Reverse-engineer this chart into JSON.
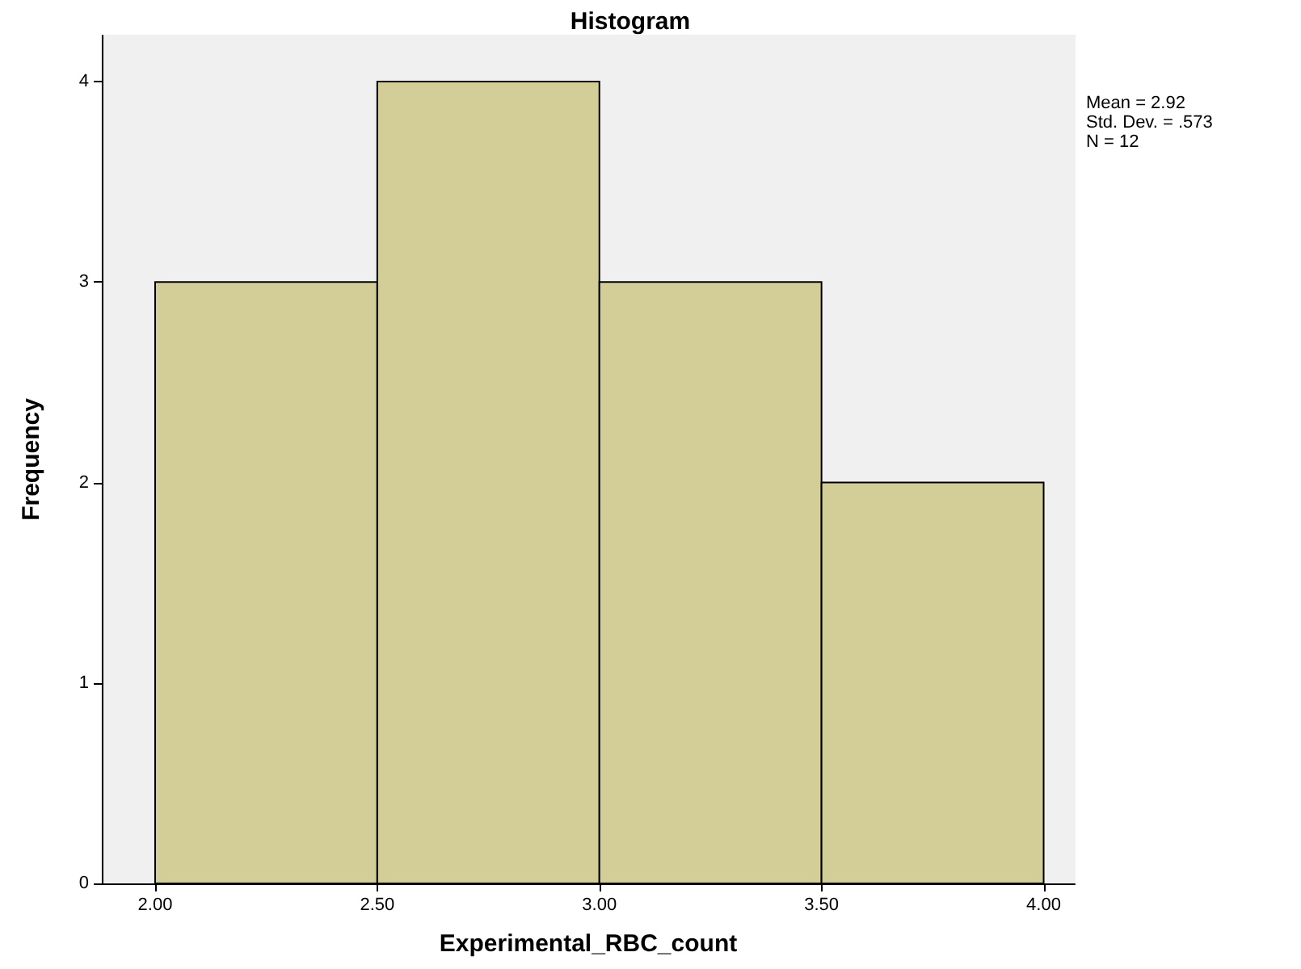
{
  "chart_data": {
    "type": "histogram",
    "title": "Histogram",
    "xlabel": "Experimental_RBC_count",
    "ylabel": "Frequency",
    "bins": [
      2.0,
      2.5,
      3.0,
      3.5,
      4.0
    ],
    "values": [
      3,
      4,
      3,
      2
    ],
    "color": "#d3ce97",
    "xlim": [
      1.88,
      4.07
    ],
    "xticks": [
      {
        "value": 2.0,
        "label": "2.00"
      },
      {
        "value": 2.5,
        "label": "2.50"
      },
      {
        "value": 3.0,
        "label": "3.00"
      },
      {
        "value": 3.5,
        "label": "3.50"
      },
      {
        "value": 4.0,
        "label": "4.00"
      }
    ],
    "ylim": [
      0,
      4.23
    ],
    "yticks": [
      0,
      1,
      2,
      3,
      4
    ],
    "grid": false,
    "annotations": [
      "Mean = 2.92",
      "Std. Dev. = .573",
      "N = 12"
    ]
  }
}
